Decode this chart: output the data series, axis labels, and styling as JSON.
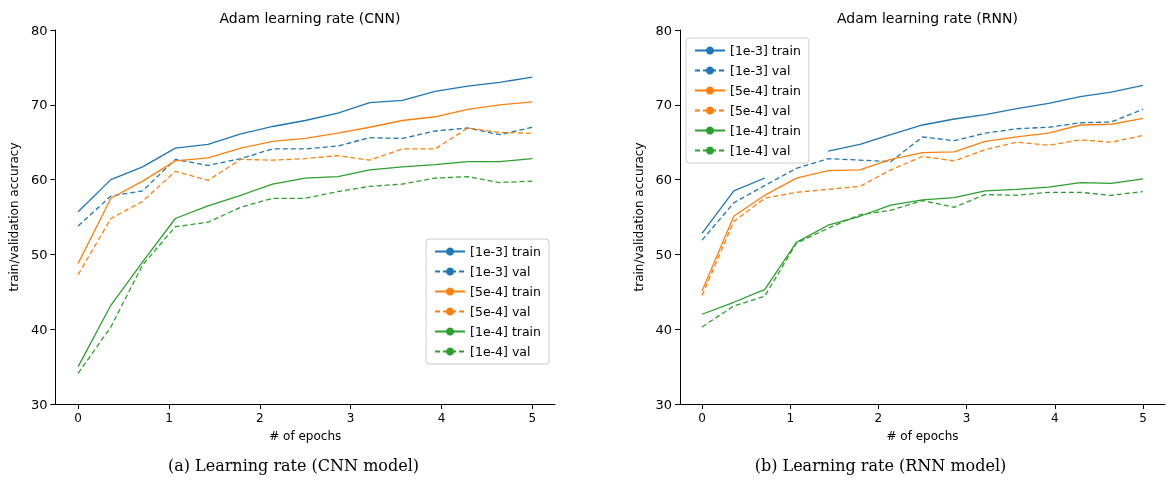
{
  "chart_data": [
    {
      "type": "line",
      "title": "Adam learning rate (CNN)",
      "xlabel": "# of epochs",
      "ylabel": "train/validation accuracy",
      "annotations": [
        "(a) Learning rate (CNN model)"
      ],
      "x": [
        0,
        0.36,
        0.71,
        1.07,
        1.43,
        1.79,
        2.14,
        2.5,
        2.86,
        3.21,
        3.57,
        3.93,
        4.29,
        4.64,
        5
      ],
      "xlim": [
        -0.25,
        5.25
      ],
      "xticks": [
        0,
        1,
        2,
        3,
        4,
        5
      ],
      "ylim": [
        30,
        80
      ],
      "yticks": [
        30,
        40,
        50,
        60,
        70,
        80
      ],
      "grid": false,
      "legend": "bottom right",
      "marker": "none",
      "series": [
        {
          "name": "[1e-3] train",
          "color": "#1f77b4",
          "line_style": "solid",
          "values": [
            55.7,
            60,
            61.7,
            64.2,
            64.7,
            66.1,
            67.1,
            67.9,
            68.9,
            70.3,
            70.6,
            71.8,
            72.5,
            73,
            73.7
          ]
        },
        {
          "name": "[1e-3] val",
          "color": "#1f77b4",
          "line_style": "dashed",
          "values": [
            53.8,
            57.8,
            58.5,
            62.7,
            61.9,
            62.8,
            64.1,
            64.1,
            64.5,
            65.6,
            65.5,
            66.5,
            66.9,
            66,
            67
          ]
        },
        {
          "name": "[5e-4] train",
          "color": "#ff7f0e",
          "line_style": "solid",
          "values": [
            48.8,
            57.5,
            59.8,
            62.5,
            62.9,
            64.2,
            65.1,
            65.5,
            66.2,
            67,
            67.9,
            68.4,
            69.4,
            70,
            70.4
          ]
        },
        {
          "name": "[5e-4] val",
          "color": "#ff7f0e",
          "line_style": "dashed",
          "values": [
            47.3,
            54.8,
            57.1,
            61.1,
            59.9,
            62.7,
            62.6,
            62.8,
            63.2,
            62.6,
            64.1,
            64.1,
            66.9,
            66.3,
            66.2
          ]
        },
        {
          "name": "[1e-4] train",
          "color": "#2ca02c",
          "line_style": "solid",
          "values": [
            35,
            43.2,
            49,
            54.8,
            56.5,
            57.9,
            59.4,
            60.2,
            60.4,
            61.3,
            61.7,
            62,
            62.4,
            62.4,
            62.8
          ]
        },
        {
          "name": "[1e-4] val",
          "color": "#2ca02c",
          "line_style": "dashed",
          "values": [
            34.1,
            40.3,
            48.6,
            53.7,
            54.3,
            56.3,
            57.5,
            57.5,
            58.4,
            59.1,
            59.4,
            60.2,
            60.4,
            59.6,
            59.8
          ]
        }
      ]
    },
    {
      "type": "line",
      "title": "Adam learning rate (RNN)",
      "xlabel": "# of epochs",
      "ylabel": "train/validation accuracy",
      "annotations": [
        "(b) Learning rate (RNN model)"
      ],
      "x": [
        0,
        0.36,
        0.71,
        1.07,
        1.43,
        1.79,
        2.14,
        2.5,
        2.86,
        3.21,
        3.57,
        3.93,
        4.29,
        4.64,
        5
      ],
      "xlim": [
        -0.25,
        5.25
      ],
      "xticks": [
        0,
        1,
        2,
        3,
        4,
        5
      ],
      "ylim": [
        30,
        80
      ],
      "yticks": [
        30,
        40,
        50,
        60,
        70,
        80
      ],
      "grid": false,
      "legend": "top left",
      "marker": "none",
      "series": [
        {
          "name": "[1e-3] train",
          "color": "#1f77b4",
          "line_style": "solid",
          "values": [
            52.8,
            58.5,
            60.2,
            null,
            63.8,
            64.7,
            66.0,
            67.3,
            68.1,
            68.7,
            69.5,
            70.2,
            71.1,
            71.7,
            72.6
          ]
        },
        {
          "name": "[1e-3] val",
          "color": "#1f77b4",
          "line_style": "dashed",
          "values": [
            51.9,
            56.9,
            59.2,
            61.5,
            62.8,
            62.6,
            62.4,
            65.7,
            65.2,
            66.2,
            66.8,
            67.0,
            67.6,
            67.7,
            69.4
          ]
        },
        {
          "name": "[5e-4] train",
          "color": "#ff7f0e",
          "line_style": "solid",
          "values": [
            45.1,
            55.1,
            57.9,
            60.2,
            61.2,
            61.3,
            62.7,
            63.6,
            63.7,
            65.1,
            65.7,
            66.2,
            67.3,
            67.4,
            68.2
          ]
        },
        {
          "name": "[5e-4] val",
          "color": "#ff7f0e",
          "line_style": "dashed",
          "values": [
            44.5,
            54.4,
            57.5,
            58.3,
            58.7,
            59.1,
            61.3,
            63.1,
            62.5,
            64.0,
            65.0,
            64.6,
            65.3,
            65.0,
            65.9
          ]
        },
        {
          "name": "[1e-4] train",
          "color": "#2ca02c",
          "line_style": "solid",
          "values": [
            42.0,
            43.6,
            45.3,
            51.6,
            53.9,
            55.1,
            56.6,
            57.3,
            57.6,
            58.5,
            58.7,
            59.0,
            59.6,
            59.5,
            60.1
          ]
        },
        {
          "name": "[1e-4] val",
          "color": "#2ca02c",
          "line_style": "dashed",
          "values": [
            40.3,
            43.1,
            44.4,
            51.5,
            53.5,
            55.3,
            55.9,
            57.2,
            56.3,
            58.0,
            57.9,
            58.3,
            58.3,
            57.9,
            58.4
          ]
        }
      ]
    }
  ]
}
